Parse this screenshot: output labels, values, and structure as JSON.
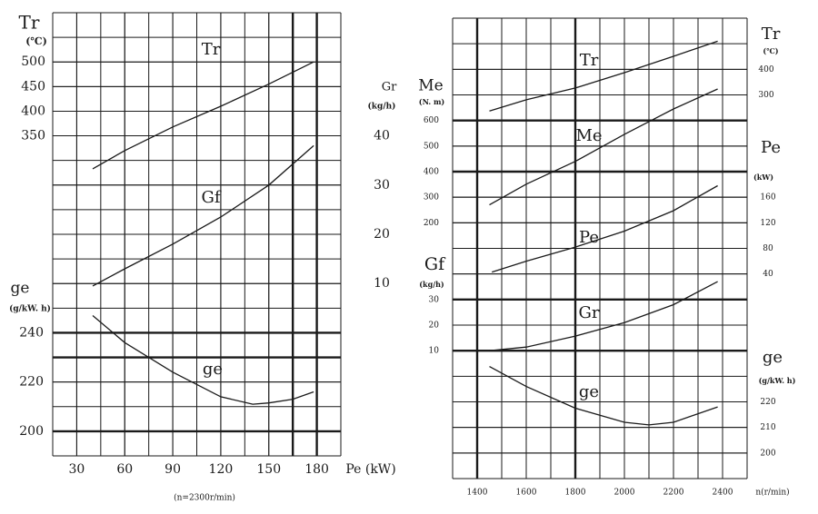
{
  "chart_data": [
    {
      "type": "line",
      "x_label": "Pe (kW)",
      "note": "(n=2300r/min)",
      "color": "#1a1a1a",
      "xlim": [
        15,
        195
      ],
      "xticks": [
        30,
        60,
        90,
        120,
        150,
        180
      ],
      "axes": [
        {
          "title": "Tr",
          "unit": "(℃)",
          "side": "left",
          "ylim": [
            -300,
            600
          ],
          "yticks": [
            350,
            400,
            450,
            500
          ],
          "series": [
            {
              "name": "Tr",
              "x": [
                40,
                60,
                90,
                120,
                150,
                178
              ],
              "values": [
                283,
                320,
                368,
                410,
                455,
                500
              ]
            }
          ]
        },
        {
          "title": "Gr",
          "unit": "(kg/h)",
          "side": "right",
          "ylim": [
            -25,
            65
          ],
          "yticks": [
            10,
            20,
            30,
            40
          ],
          "series": [
            {
              "name": "Gf",
              "x": [
                40,
                60,
                90,
                120,
                150,
                178
              ],
              "values": [
                9.5,
                13,
                18,
                23.5,
                30,
                38
              ]
            }
          ]
        },
        {
          "title": "ge",
          "unit": "(g/kW. h)",
          "side": "left",
          "ylim": [
            190,
            370
          ],
          "yticks": [
            200,
            220,
            240
          ],
          "series": [
            {
              "name": "ge",
              "x": [
                40,
                60,
                90,
                120,
                140,
                150,
                165,
                178
              ],
              "values": [
                247,
                236,
                224,
                214,
                211,
                211.5,
                213,
                216
              ]
            }
          ]
        }
      ]
    },
    {
      "type": "line",
      "x_label": "n(r/min)",
      "color": "#1a1a1a",
      "xlim": [
        1300,
        2500
      ],
      "xticks": [
        1400,
        1600,
        1800,
        2000,
        2200,
        2400
      ],
      "axes": [
        {
          "title": "Me",
          "unit": "(N. m)",
          "side": "left",
          "ylim": [
            -800,
            1000
          ],
          "yticks": [
            200,
            300,
            400,
            500,
            600
          ],
          "series": [
            {
              "name": "Me",
              "x": [
                1450,
                1600,
                1800,
                2000,
                2200,
                2380
              ],
              "values": [
                270,
                351,
                440,
                546,
                645,
                723
              ]
            }
          ]
        },
        {
          "title": "Gf",
          "unit": "(kg/h)",
          "side": "left",
          "ylim": [
            -40,
            140
          ],
          "yticks": [
            10,
            20,
            30
          ],
          "series": [
            {
              "name": "Gr",
              "x": [
                1450,
                1600,
                1800,
                2000,
                2200,
                2380
              ],
              "values": [
                10,
                11.4,
                15.7,
                21,
                28,
                37
              ]
            }
          ]
        },
        {
          "title": "Tr",
          "unit": "(℃)",
          "side": "right",
          "ylim": [
            -1200,
            600
          ],
          "yticks": [
            300,
            400
          ],
          "series": [
            {
              "name": "Tr",
              "x": [
                1450,
                1600,
                1800,
                2000,
                2200,
                2380
              ],
              "values": [
                237,
                281,
                327,
                387,
                451,
                510
              ]
            }
          ]
        },
        {
          "title": "Pe",
          "unit": "(kW)",
          "side": "right",
          "ylim": [
            -280,
            440
          ],
          "yticks": [
            40,
            80,
            120,
            160
          ],
          "series": [
            {
              "name": "Pe",
              "x": [
                1460,
                1600,
                1800,
                2000,
                2200,
                2380
              ],
              "values": [
                43,
                60,
                82,
                107,
                139,
                178
              ]
            }
          ]
        },
        {
          "title": "ge",
          "unit": "(g/kW. h)",
          "side": "right",
          "ylim": [
            190,
            370
          ],
          "yticks": [
            200,
            210,
            220
          ],
          "series": [
            {
              "name": "ge",
              "x": [
                1450,
                1600,
                1800,
                2000,
                2100,
                2200,
                2380
              ],
              "values": [
                233.8,
                226,
                217.5,
                212,
                211,
                212,
                218
              ]
            }
          ]
        }
      ]
    }
  ]
}
